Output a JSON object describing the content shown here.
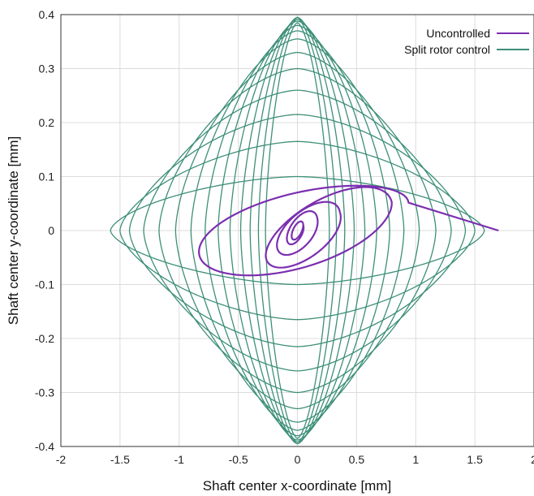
{
  "chart_data": {
    "type": "line",
    "title": "",
    "xlabel": "Shaft center x-coordinate [mm]",
    "ylabel": "Shaft center y-coordinate [mm]",
    "xlim": [
      -2,
      2
    ],
    "ylim": [
      -0.4,
      0.4
    ],
    "x_ticks": [
      "-2",
      "-1.5",
      "-1",
      "-0.5",
      "0",
      "0.5",
      "1",
      "1.5",
      "2"
    ],
    "y_ticks": [
      "-0.4",
      "-0.3",
      "-0.2",
      "-0.1",
      "0",
      "0.1",
      "0.2",
      "0.3",
      "0.4"
    ],
    "x_tick_values": [
      -2,
      -1.5,
      -1,
      -0.5,
      0,
      0.5,
      1,
      1.5,
      2
    ],
    "y_tick_values": [
      -0.4,
      -0.3,
      -0.2,
      -0.1,
      0,
      0.1,
      0.2,
      0.3,
      0.4
    ],
    "grid": true,
    "legend_position": "top-right",
    "series": [
      {
        "name": "Uncontrolled",
        "color": "#7b2fb0",
        "kind": "spiral",
        "end_point": [
          1.7,
          0.0
        ],
        "loops": [
          {
            "a": 1.13,
            "b": 0.055,
            "cx": -0.19,
            "cy": 0.012,
            "tilt": 0.035
          },
          {
            "a": 0.56,
            "b": 0.067,
            "cx": 0.24,
            "cy": -0.003,
            "tilt": 0.1
          },
          {
            "a": 0.29,
            "b": 0.043,
            "cx": 0.07,
            "cy": 0.0,
            "tilt": 0.12
          },
          {
            "a": 0.15,
            "b": 0.032,
            "cx": 0.02,
            "cy": 0.0,
            "tilt": 0.15
          },
          {
            "a": 0.05,
            "b": 0.014,
            "cx": 0.0,
            "cy": 0.0,
            "tilt": 0.2
          }
        ]
      },
      {
        "name": "Split rotor control",
        "color": "#3d8f78",
        "kind": "diamond-orbits",
        "orbits": [
          {
            "a": 1.58,
            "b": 0.1
          },
          {
            "a": 1.5,
            "b": 0.165
          },
          {
            "a": 1.42,
            "b": 0.215
          },
          {
            "a": 1.3,
            "b": 0.26
          },
          {
            "a": 1.17,
            "b": 0.3
          },
          {
            "a": 1.03,
            "b": 0.33
          },
          {
            "a": 0.9,
            "b": 0.355
          },
          {
            "a": 0.78,
            "b": 0.37
          },
          {
            "a": 0.67,
            "b": 0.38
          },
          {
            "a": 0.57,
            "b": 0.388
          },
          {
            "a": 0.48,
            "b": 0.392
          },
          {
            "a": 0.4,
            "b": 0.395
          },
          {
            "a": 0.33,
            "b": 0.392
          },
          {
            "a": 0.27,
            "b": 0.385
          }
        ]
      }
    ]
  }
}
